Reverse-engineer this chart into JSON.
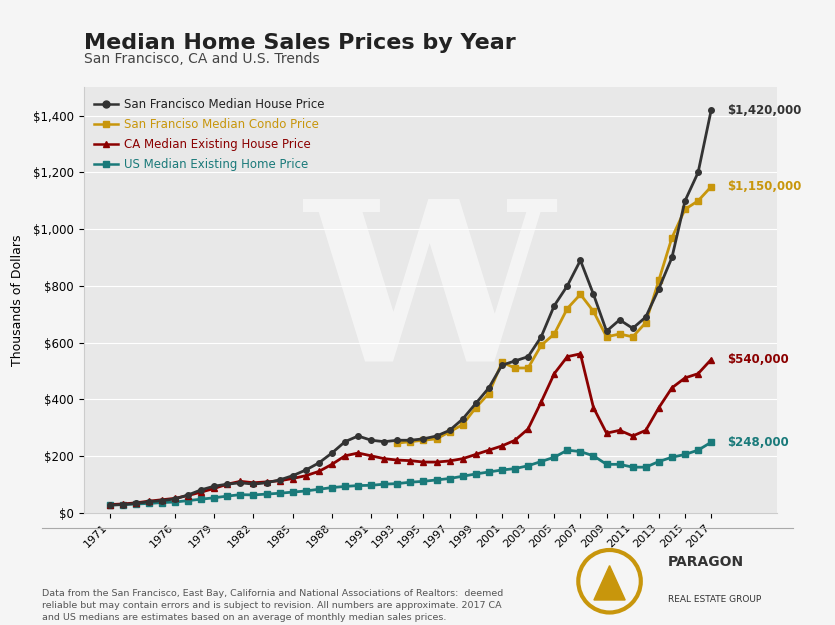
{
  "title": "Median Home Sales Prices by Year",
  "subtitle": "San Francisco, CA and U.S. Trends",
  "ylabel": "Thousands of Dollars",
  "xlabel": "",
  "background_color": "#f5f5f5",
  "plot_bg_color": "#e8e8e8",
  "xtick_labels": [
    "1971",
    "1976",
    "1979",
    "1982",
    "1985",
    "1988",
    "1991",
    "1993",
    "1995",
    "1997",
    "1999",
    "2001",
    "2003",
    "2005",
    "2007",
    "2009",
    "2011",
    "2013",
    "2015",
    "2017"
  ],
  "ylim": [
    0,
    1500
  ],
  "ytick_vals": [
    0,
    200,
    400,
    600,
    800,
    1000,
    1200,
    1400
  ],
  "ytick_labels": [
    "$0",
    "$200",
    "$400",
    "$600",
    "$800",
    "$1,000",
    "$1,200",
    "$1,400"
  ],
  "sf_house": {
    "years": [
      1971,
      1972,
      1973,
      1974,
      1975,
      1976,
      1977,
      1978,
      1979,
      1980,
      1981,
      1982,
      1983,
      1984,
      1985,
      1986,
      1987,
      1988,
      1989,
      1990,
      1991,
      1992,
      1993,
      1994,
      1995,
      1996,
      1997,
      1998,
      1999,
      2000,
      2001,
      2002,
      2003,
      2004,
      2005,
      2006,
      2007,
      2008,
      2009,
      2010,
      2011,
      2012,
      2013,
      2014,
      2015,
      2016,
      2017
    ],
    "values": [
      26,
      28,
      32,
      38,
      42,
      48,
      62,
      80,
      93,
      100,
      105,
      100,
      105,
      115,
      130,
      150,
      175,
      210,
      250,
      270,
      255,
      250,
      255,
      255,
      260,
      270,
      290,
      330,
      385,
      440,
      520,
      535,
      550,
      620,
      730,
      800,
      890,
      770,
      640,
      680,
      650,
      690,
      790,
      900,
      1100,
      1200,
      1420
    ],
    "color": "#333333",
    "marker": "o",
    "label": "San Francisco Median House Price",
    "end_label": "$1,420,000",
    "linewidth": 2.0
  },
  "sf_condo": {
    "years": [
      1993,
      1994,
      1995,
      1996,
      1997,
      1998,
      1999,
      2000,
      2001,
      2002,
      2003,
      2004,
      2005,
      2006,
      2007,
      2008,
      2009,
      2010,
      2011,
      2012,
      2013,
      2014,
      2015,
      2016,
      2017
    ],
    "values": [
      245,
      250,
      255,
      260,
      285,
      310,
      370,
      420,
      530,
      510,
      510,
      590,
      630,
      720,
      770,
      710,
      620,
      630,
      620,
      670,
      820,
      970,
      1070,
      1100,
      1150
    ],
    "color": "#c8960c",
    "marker": "s",
    "label": "San Franciso Median Condo Price",
    "end_label": "$1,150,000",
    "linewidth": 2.0
  },
  "ca_house": {
    "years": [
      1971,
      1972,
      1973,
      1974,
      1975,
      1976,
      1977,
      1978,
      1979,
      1980,
      1981,
      1982,
      1983,
      1984,
      1985,
      1986,
      1987,
      1988,
      1989,
      1990,
      1991,
      1992,
      1993,
      1994,
      1995,
      1996,
      1997,
      1998,
      1999,
      2000,
      2001,
      2002,
      2003,
      2004,
      2005,
      2006,
      2007,
      2008,
      2009,
      2010,
      2011,
      2012,
      2013,
      2014,
      2015,
      2016,
      2017
    ],
    "values": [
      28,
      30,
      34,
      40,
      45,
      50,
      60,
      72,
      85,
      100,
      110,
      105,
      108,
      112,
      120,
      130,
      145,
      170,
      200,
      210,
      200,
      190,
      185,
      183,
      178,
      178,
      182,
      190,
      205,
      220,
      235,
      255,
      295,
      390,
      490,
      550,
      560,
      370,
      280,
      290,
      270,
      290,
      370,
      440,
      475,
      490,
      540
    ],
    "color": "#8b0000",
    "marker": "^",
    "label": "CA Median Existing House Price",
    "end_label": "$540,000",
    "linewidth": 2.0
  },
  "us_home": {
    "years": [
      1971,
      1972,
      1973,
      1974,
      1975,
      1976,
      1977,
      1978,
      1979,
      1980,
      1981,
      1982,
      1983,
      1984,
      1985,
      1986,
      1987,
      1988,
      1989,
      1990,
      1991,
      1992,
      1993,
      1994,
      1995,
      1996,
      1997,
      1998,
      1999,
      2000,
      2001,
      2002,
      2003,
      2004,
      2005,
      2006,
      2007,
      2008,
      2009,
      2010,
      2011,
      2012,
      2013,
      2014,
      2015,
      2016,
      2017
    ],
    "values": [
      27,
      28,
      30,
      32,
      35,
      37,
      42,
      47,
      52,
      58,
      63,
      62,
      65,
      68,
      72,
      76,
      82,
      88,
      92,
      95,
      96,
      100,
      102,
      107,
      110,
      115,
      120,
      128,
      136,
      143,
      150,
      155,
      165,
      180,
      195,
      220,
      215,
      200,
      170,
      170,
      160,
      160,
      180,
      195,
      205,
      220,
      248
    ],
    "color": "#1a7a7a",
    "marker": "s",
    "label": "US Median Existing Home Price",
    "end_label": "$248,000",
    "linewidth": 2.0
  },
  "footer_text": "Data from the San Francisco, East Bay, California and National Associations of Realtors:  deemed\nreliable but may contain errors and is subject to revision. All numbers are approximate. 2017 CA\nand US medians are estimates based on an average of monthly median sales prices.",
  "watermark_text": "W"
}
